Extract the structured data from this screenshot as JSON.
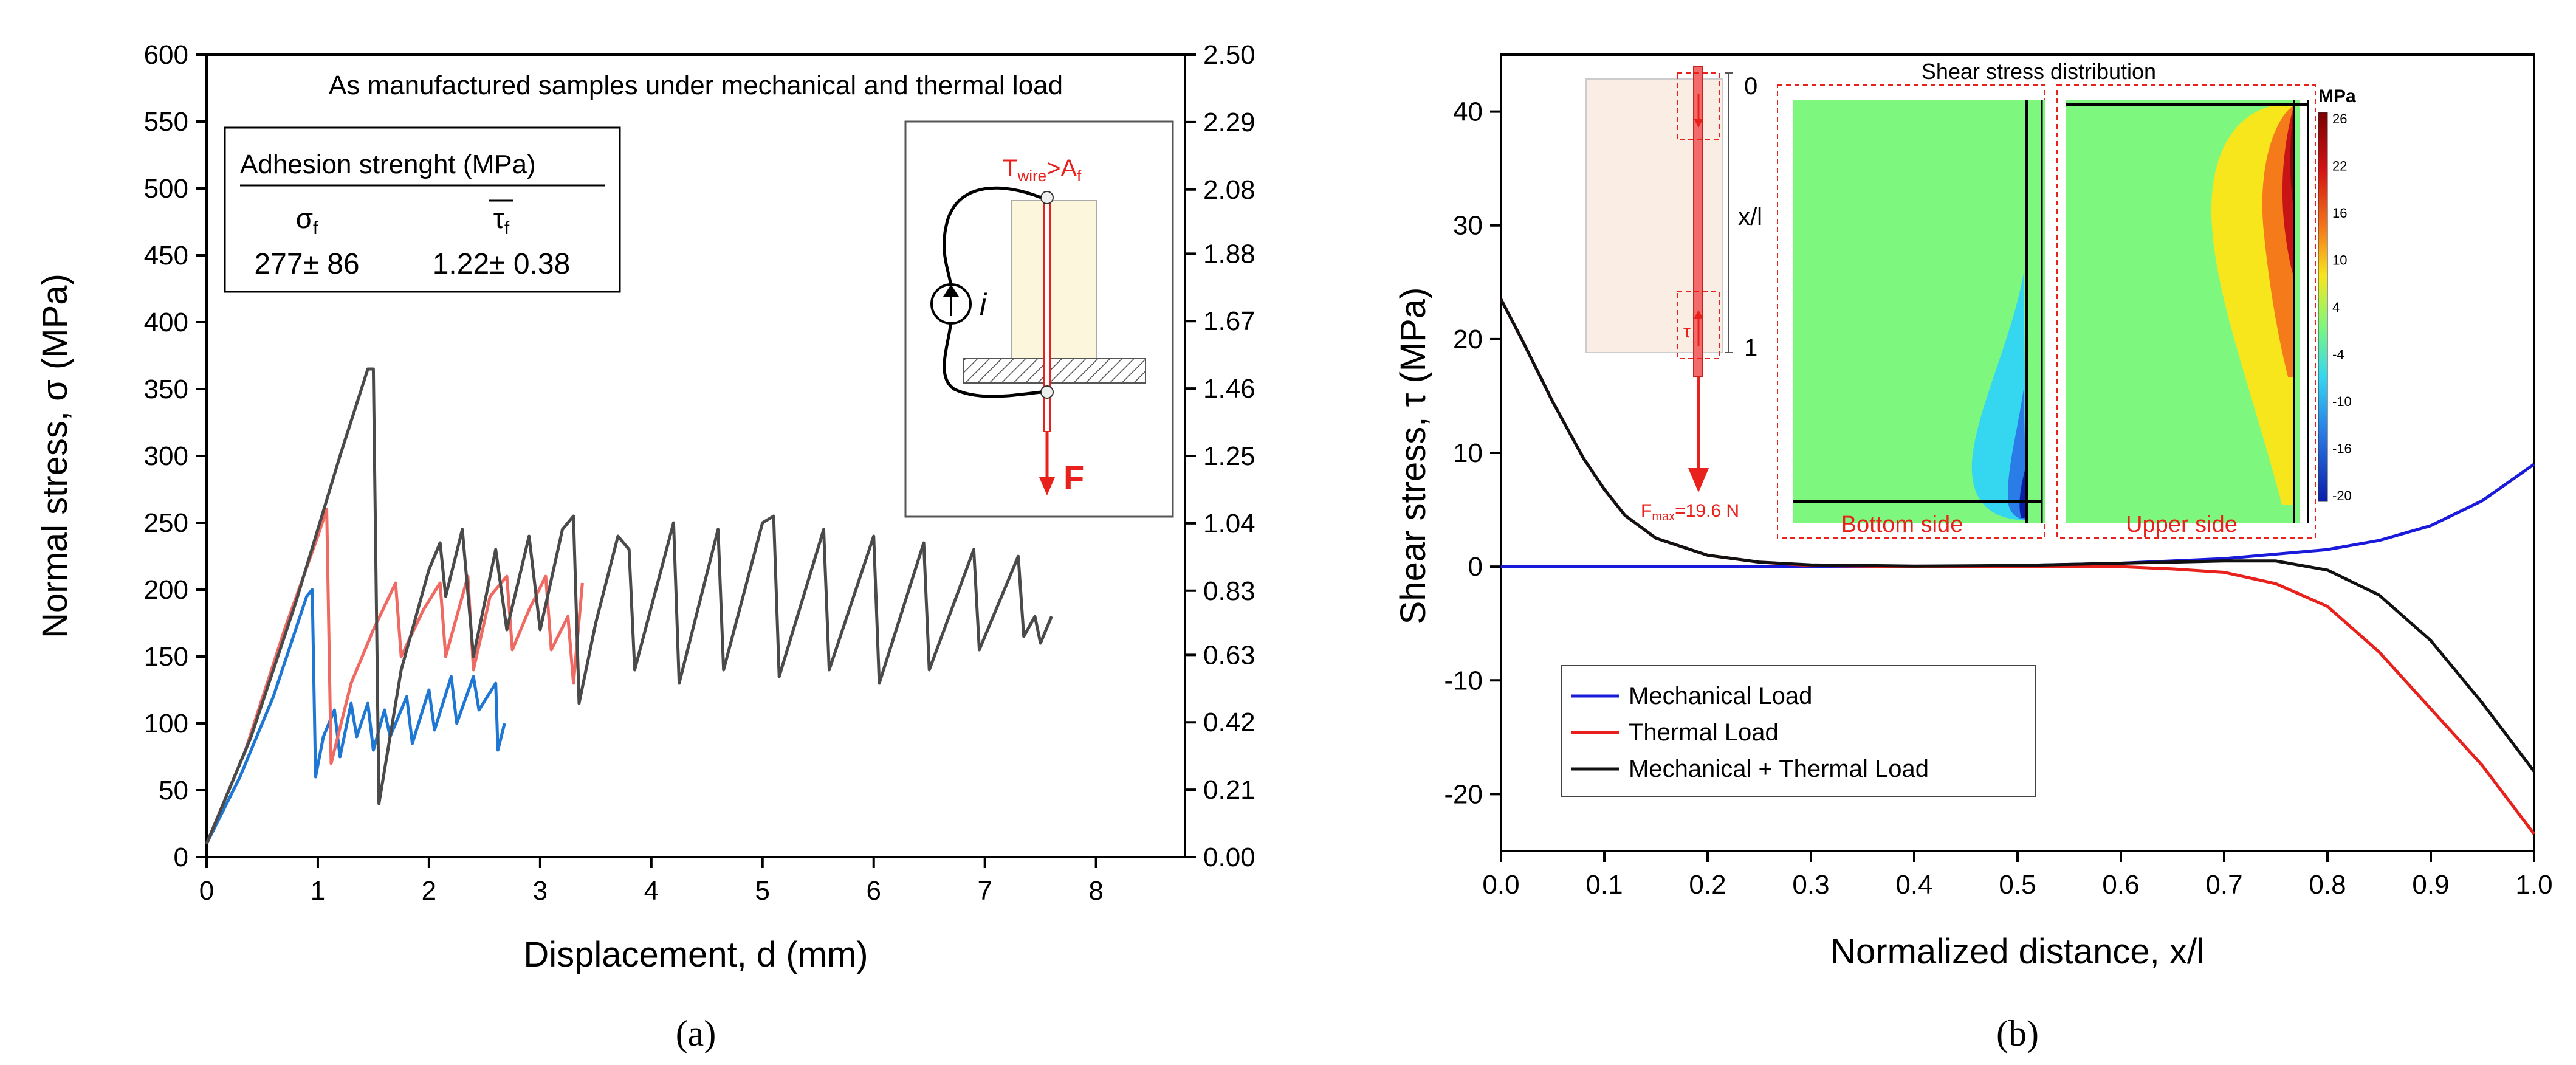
{
  "chart_data": [
    {
      "panel_label": "(a)",
      "type": "line",
      "title": "As manufactured samples under mechanical and thermal load",
      "xlabel": "Displacement, d (mm)",
      "ylabel": "Normal stress, σ (MPa)",
      "xlim": [
        0,
        8.8
      ],
      "ylim": [
        0,
        600
      ],
      "x_ticks": [
        "0",
        "1",
        "2",
        "3",
        "4",
        "5",
        "6",
        "7",
        "8"
      ],
      "y_ticks": [
        "0",
        "50",
        "100",
        "150",
        "200",
        "250",
        "300",
        "350",
        "400",
        "450",
        "500",
        "550",
        "600"
      ],
      "y2_ticks": [
        "0.00",
        "0.21",
        "0.42",
        "0.63",
        "0.83",
        "1.04",
        "1.25",
        "1.46",
        "1.67",
        "1.88",
        "2.08",
        "2.29",
        "2.50"
      ],
      "y2lim": [
        0,
        2.5
      ],
      "grid": false,
      "inset_table": {
        "header": "Adhesion strenght (MPa)",
        "col1_symbol": "σ",
        "col1_sub": "f",
        "col2_symbol": "τ",
        "col2_sub": "f",
        "col1_value": "277± 86",
        "col2_value": "1.22± 0.38"
      },
      "inset_schematic": {
        "temp_label": "T",
        "temp_sub": "wire",
        "temp_rhs": ">A",
        "temp_rhs_sub": "f",
        "current_label": "i",
        "force_label": "F"
      },
      "series": [
        {
          "color": "#1f77d4",
          "points": [
            [
              0,
              10
            ],
            [
              0.3,
              60
            ],
            [
              0.6,
              120
            ],
            [
              0.9,
              195
            ],
            [
              0.95,
              200
            ],
            [
              0.98,
              60
            ],
            [
              1.05,
              90
            ],
            [
              1.15,
              110
            ],
            [
              1.2,
              75
            ],
            [
              1.3,
              115
            ],
            [
              1.35,
              90
            ],
            [
              1.45,
              115
            ],
            [
              1.5,
              80
            ],
            [
              1.6,
              110
            ],
            [
              1.65,
              90
            ],
            [
              1.8,
              120
            ],
            [
              1.85,
              85
            ],
            [
              2.0,
              125
            ],
            [
              2.05,
              95
            ],
            [
              2.2,
              135
            ],
            [
              2.25,
              100
            ],
            [
              2.4,
              135
            ],
            [
              2.45,
              110
            ],
            [
              2.6,
              130
            ],
            [
              2.62,
              80
            ],
            [
              2.68,
              100
            ]
          ]
        },
        {
          "color": "#ef6a62",
          "points": [
            [
              0,
              10
            ],
            [
              0.35,
              80
            ],
            [
              0.7,
              170
            ],
            [
              1.0,
              240
            ],
            [
              1.08,
              260
            ],
            [
              1.12,
              70
            ],
            [
              1.3,
              130
            ],
            [
              1.5,
              170
            ],
            [
              1.7,
              205
            ],
            [
              1.75,
              150
            ],
            [
              1.95,
              185
            ],
            [
              2.1,
              205
            ],
            [
              2.15,
              150
            ],
            [
              2.35,
              210
            ],
            [
              2.4,
              140
            ],
            [
              2.55,
              195
            ],
            [
              2.7,
              210
            ],
            [
              2.75,
              155
            ],
            [
              2.9,
              185
            ],
            [
              3.05,
              210
            ],
            [
              3.1,
              155
            ],
            [
              3.25,
              180
            ],
            [
              3.3,
              130
            ],
            [
              3.38,
              205
            ]
          ]
        },
        {
          "color": "#4a4a4a",
          "points": [
            [
              0,
              10
            ],
            [
              0.4,
              90
            ],
            [
              0.8,
              190
            ],
            [
              1.2,
              300
            ],
            [
              1.45,
              365
            ],
            [
              1.5,
              365
            ],
            [
              1.55,
              40
            ],
            [
              1.75,
              140
            ],
            [
              2.0,
              215
            ],
            [
              2.1,
              235
            ],
            [
              2.15,
              195
            ],
            [
              2.3,
              245
            ],
            [
              2.4,
              150
            ],
            [
              2.6,
              230
            ],
            [
              2.7,
              170
            ],
            [
              2.9,
              240
            ],
            [
              3.0,
              170
            ],
            [
              3.2,
              245
            ],
            [
              3.3,
              255
            ],
            [
              3.35,
              115
            ],
            [
              3.5,
              175
            ],
            [
              3.7,
              240
            ],
            [
              3.8,
              230
            ],
            [
              3.85,
              140
            ],
            [
              4.2,
              250
            ],
            [
              4.25,
              130
            ],
            [
              4.6,
              245
            ],
            [
              4.65,
              140
            ],
            [
              5.0,
              250
            ],
            [
              5.1,
              255
            ],
            [
              5.15,
              135
            ],
            [
              5.55,
              245
            ],
            [
              5.6,
              140
            ],
            [
              6.0,
              240
            ],
            [
              6.05,
              130
            ],
            [
              6.45,
              235
            ],
            [
              6.5,
              140
            ],
            [
              6.9,
              230
            ],
            [
              6.95,
              155
            ],
            [
              7.3,
              225
            ],
            [
              7.35,
              165
            ],
            [
              7.45,
              180
            ],
            [
              7.5,
              160
            ],
            [
              7.6,
              180
            ]
          ]
        }
      ]
    },
    {
      "panel_label": "(b)",
      "type": "line",
      "xlabel": "Normalized distance, x/l",
      "ylabel": "Shear stress, τ (MPa)",
      "xlim": [
        0,
        1.0
      ],
      "ylim": [
        -25,
        45
      ],
      "x_ticks": [
        "0.0",
        "0.1",
        "0.2",
        "0.3",
        "0.4",
        "0.5",
        "0.6",
        "0.7",
        "0.8",
        "0.9",
        "1.0"
      ],
      "y_ticks": [
        "-20",
        "-10",
        "0",
        "10",
        "20",
        "30",
        "40"
      ],
      "grid": false,
      "legend": {
        "placement": "bottom-left",
        "entries": [
          "Mechanical Load",
          "Thermal Load",
          "Mechanical + Thermal Load"
        ]
      },
      "inset": {
        "title": "Shear stress distribution",
        "bottom_label": "Bottom side",
        "upper_label": "Upper side",
        "colorbar_title": "MPa",
        "colorbar_ticks": [
          "26",
          "22",
          "16",
          "10",
          "4",
          "-4",
          "-10",
          "-16",
          "-20"
        ],
        "schematic_top": "0",
        "schematic_mid": "x/l",
        "schematic_bottom": "1",
        "tau_label": "τ",
        "force_label": "F",
        "force_sub": "max",
        "force_value": "=19.6 N"
      },
      "series": [
        {
          "name": "Mechanical Load",
          "color": "#1a1adb",
          "points": [
            [
              0,
              0
            ],
            [
              0.1,
              0
            ],
            [
              0.2,
              0
            ],
            [
              0.3,
              0
            ],
            [
              0.4,
              0
            ],
            [
              0.5,
              0.1
            ],
            [
              0.6,
              0.3
            ],
            [
              0.7,
              0.7
            ],
            [
              0.8,
              1.5
            ],
            [
              0.85,
              2.3
            ],
            [
              0.9,
              3.6
            ],
            [
              0.95,
              5.8
            ],
            [
              1.0,
              9.0
            ]
          ]
        },
        {
          "name": "Thermal Load",
          "color": "#e8211c",
          "points": [
            [
              0,
              23.5
            ],
            [
              0.02,
              20
            ],
            [
              0.05,
              14.5
            ],
            [
              0.08,
              9.5
            ],
            [
              0.1,
              6.8
            ],
            [
              0.12,
              4.5
            ],
            [
              0.15,
              2.5
            ],
            [
              0.2,
              1.0
            ],
            [
              0.25,
              0.4
            ],
            [
              0.3,
              0.1
            ],
            [
              0.4,
              0
            ],
            [
              0.5,
              0
            ],
            [
              0.6,
              0
            ],
            [
              0.65,
              -0.2
            ],
            [
              0.7,
              -0.5
            ],
            [
              0.75,
              -1.5
            ],
            [
              0.8,
              -3.5
            ],
            [
              0.85,
              -7.5
            ],
            [
              0.9,
              -12.5
            ],
            [
              0.95,
              -17.5
            ],
            [
              1.0,
              -23.5
            ]
          ]
        },
        {
          "name": "Mechanical + Thermal Load",
          "color": "#111111",
          "points": [
            [
              0,
              23.5
            ],
            [
              0.02,
              20
            ],
            [
              0.05,
              14.5
            ],
            [
              0.08,
              9.5
            ],
            [
              0.1,
              6.8
            ],
            [
              0.12,
              4.5
            ],
            [
              0.15,
              2.5
            ],
            [
              0.2,
              1.0
            ],
            [
              0.25,
              0.4
            ],
            [
              0.3,
              0.15
            ],
            [
              0.4,
              0.05
            ],
            [
              0.5,
              0.1
            ],
            [
              0.6,
              0.3
            ],
            [
              0.7,
              0.5
            ],
            [
              0.75,
              0.5
            ],
            [
              0.8,
              -0.3
            ],
            [
              0.85,
              -2.5
            ],
            [
              0.9,
              -6.5
            ],
            [
              0.95,
              -12
            ],
            [
              1.0,
              -18
            ]
          ]
        }
      ]
    }
  ]
}
